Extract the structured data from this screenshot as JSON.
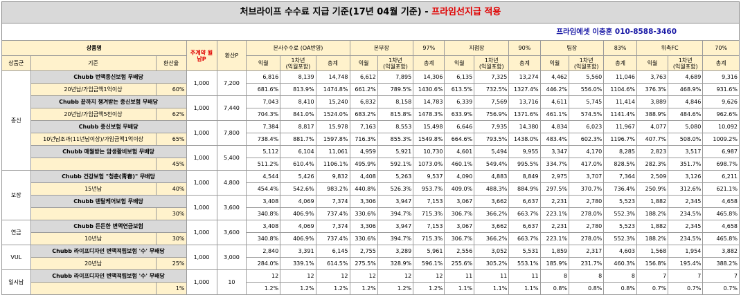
{
  "title": {
    "main": "처브라이프 수수료 지급 기준(17년 04월 기준) - ",
    "accent": "프라임선지급 적용"
  },
  "contact": "프라임에셋 이충훈 010-8588-3460",
  "header": {
    "product": "상품명",
    "monthly_p": "주계약 월납P",
    "conv_p": "환산P",
    "group_col": "상품군",
    "std_col": "기준",
    "rate_col": "환산율",
    "sections": [
      {
        "name": "본사수수료 (OA반영)",
        "pct": ""
      },
      {
        "name": "본부장",
        "pct": "97%"
      },
      {
        "name": "지점장",
        "pct": "90%"
      },
      {
        "name": "팀장",
        "pct": "83%"
      },
      {
        "name": "위촉FC",
        "pct": "70%"
      }
    ],
    "sub": {
      "m1": "익월",
      "y1a": "1차년",
      "y1b": "(익월포함)",
      "total": "총계"
    }
  },
  "groups": [
    {
      "name": "종신",
      "rows": 8
    },
    {
      "name": "보장",
      "rows": 4
    },
    {
      "name": "연금",
      "rows": 2
    },
    {
      "name": "VUL",
      "rows": 2
    },
    {
      "name": "일시납",
      "rows": 2
    }
  ],
  "products": [
    {
      "name": "Chubb 번액종신보험 무배당",
      "cond": "20년납/가입금액1억이상",
      "rate": "60%",
      "monthly": "1,000",
      "conv": "7,200",
      "vals": [
        "6,816",
        "8,139",
        "14,748",
        "6,612",
        "7,895",
        "14,306",
        "6,135",
        "7,325",
        "13,274",
        "4,462",
        "5,560",
        "11,046",
        "3,763",
        "4,689",
        "9,316"
      ],
      "pcts": [
        "681.6%",
        "813.9%",
        "1474.8%",
        "661.2%",
        "789.5%",
        "1430.6%",
        "613.5%",
        "732.5%",
        "1327.4%",
        "446.2%",
        "556.0%",
        "1104.6%",
        "376.3%",
        "468.9%",
        "931.6%"
      ]
    },
    {
      "name": "Chubb 끝까지 챙겨받는 종신보험 무배당",
      "cond": "20년납/가입금액5천이상",
      "rate": "62%",
      "monthly": "1,000",
      "conv": "7,440",
      "vals": [
        "7,043",
        "8,410",
        "15,240",
        "6,832",
        "8,158",
        "14,783",
        "6,339",
        "7,569",
        "13,716",
        "4,611",
        "5,745",
        "11,414",
        "3,889",
        "4,846",
        "9,626"
      ],
      "pcts": [
        "704.3%",
        "841.0%",
        "1524.0%",
        "683.2%",
        "815.8%",
        "1478.3%",
        "633.9%",
        "756.9%",
        "1371.6%",
        "461.1%",
        "574.5%",
        "1141.4%",
        "388.9%",
        "484.6%",
        "962.6%"
      ]
    },
    {
      "name": "Chubb 종신보험 무배당",
      "cond": "10년납조과(11년납이상)/가입금액1억이상",
      "rate": "65%",
      "monthly": "1,000",
      "conv": "7,800",
      "vals": [
        "7,384",
        "8,817",
        "15,978",
        "7,163",
        "8,553",
        "15,498",
        "6,646",
        "7,935",
        "14,380",
        "4,834",
        "6,023",
        "11,967",
        "4,077",
        "5,080",
        "10,092"
      ],
      "pcts": [
        "738.4%",
        "881.7%",
        "1597.8%",
        "716.3%",
        "855.3%",
        "1549.8%",
        "664.6%",
        "793.5%",
        "1438.0%",
        "483.4%",
        "602.3%",
        "1196.7%",
        "407.7%",
        "508.0%",
        "1009.2%"
      ]
    },
    {
      "name": "Chubb 매월받는 암생활비보험 무배당",
      "cond": "",
      "rate": "45%",
      "monthly": "1,000",
      "conv": "5,400",
      "vals": [
        "5,112",
        "6,104",
        "11,061",
        "4,959",
        "5,921",
        "10,730",
        "4,601",
        "5,494",
        "9,955",
        "3,347",
        "4,170",
        "8,285",
        "2,823",
        "3,517",
        "6,987"
      ],
      "pcts": [
        "511.2%",
        "610.4%",
        "1106.1%",
        "495.9%",
        "592.1%",
        "1073.0%",
        "460.1%",
        "549.4%",
        "995.5%",
        "334.7%",
        "417.0%",
        "828.5%",
        "282.3%",
        "351.7%",
        "698.7%"
      ]
    },
    {
      "name": "Chubb 건강보험 \"청춘(靑春)\" 무배당",
      "cond": "15년납",
      "rate": "40%",
      "monthly": "1,000",
      "conv": "4,800",
      "vals": [
        "4,544",
        "5,426",
        "9,832",
        "4,408",
        "5,263",
        "9,537",
        "4,090",
        "4,883",
        "8,849",
        "2,975",
        "3,707",
        "7,364",
        "2,509",
        "3,126",
        "6,211"
      ],
      "pcts": [
        "454.4%",
        "542.6%",
        "983.2%",
        "440.8%",
        "526.3%",
        "953.7%",
        "409.0%",
        "488.3%",
        "884.9%",
        "297.5%",
        "370.7%",
        "736.4%",
        "250.9%",
        "312.6%",
        "621.1%"
      ]
    },
    {
      "name": "Chubb 덴탈케어보험 무배당",
      "cond": "",
      "rate": "30%",
      "monthly": "1,000",
      "conv": "3,600",
      "vals": [
        "3,408",
        "4,069",
        "7,374",
        "3,306",
        "3,947",
        "7,153",
        "3,067",
        "3,662",
        "6,637",
        "2,231",
        "2,780",
        "5,523",
        "1,882",
        "2,345",
        "4,658"
      ],
      "pcts": [
        "340.8%",
        "406.9%",
        "737.4%",
        "330.6%",
        "394.7%",
        "715.3%",
        "306.7%",
        "366.2%",
        "663.7%",
        "223.1%",
        "278.0%",
        "552.3%",
        "188.2%",
        "234.5%",
        "465.8%"
      ]
    },
    {
      "name": "Chubb 든든한 변액연금보험",
      "cond": "10년납",
      "rate": "30%",
      "monthly": "1,000",
      "conv": "3,600",
      "vals": [
        "3,408",
        "4,069",
        "7,374",
        "3,306",
        "3,947",
        "7,153",
        "3,067",
        "3,662",
        "6,637",
        "2,231",
        "2,780",
        "5,523",
        "1,882",
        "2,345",
        "4,658"
      ],
      "pcts": [
        "340.8%",
        "406.9%",
        "737.4%",
        "330.6%",
        "394.7%",
        "715.3%",
        "306.7%",
        "366.2%",
        "663.7%",
        "223.1%",
        "278.0%",
        "552.3%",
        "188.2%",
        "234.5%",
        "465.8%"
      ]
    },
    {
      "name": "Chubb 라이프디자인 변액적립보험 '수' 무배당",
      "cond": "20년납",
      "rate": "25%",
      "monthly": "1,000",
      "conv": "3,000",
      "vals": [
        "2,840",
        "3,391",
        "6,145",
        "2,755",
        "3,289",
        "5,961",
        "2,556",
        "3,052",
        "5,531",
        "1,859",
        "2,317",
        "4,603",
        "1,568",
        "1,954",
        "3,882"
      ],
      "pcts": [
        "284.0%",
        "339.1%",
        "614.5%",
        "275.5%",
        "328.9%",
        "596.1%",
        "255.6%",
        "305.2%",
        "553.1%",
        "185.9%",
        "231.7%",
        "460.3%",
        "156.8%",
        "195.4%",
        "388.2%"
      ]
    },
    {
      "name": "Chubb 라이프디자인 변액적립보험 '수' 무배당",
      "cond": "",
      "rate": "1%",
      "monthly": "1,000",
      "conv": "10",
      "vals": [
        "12",
        "12",
        "12",
        "12",
        "12",
        "12",
        "11",
        "11",
        "11",
        "8",
        "8",
        "8",
        "7",
        "7",
        "7"
      ],
      "pcts": [
        "1.2%",
        "1.2%",
        "1.2%",
        "1.2%",
        "1.2%",
        "1.2%",
        "1.1%",
        "1.1%",
        "1.1%",
        "0.8%",
        "0.8%",
        "0.8%",
        "0.7%",
        "0.7%",
        "0.7%"
      ]
    }
  ]
}
